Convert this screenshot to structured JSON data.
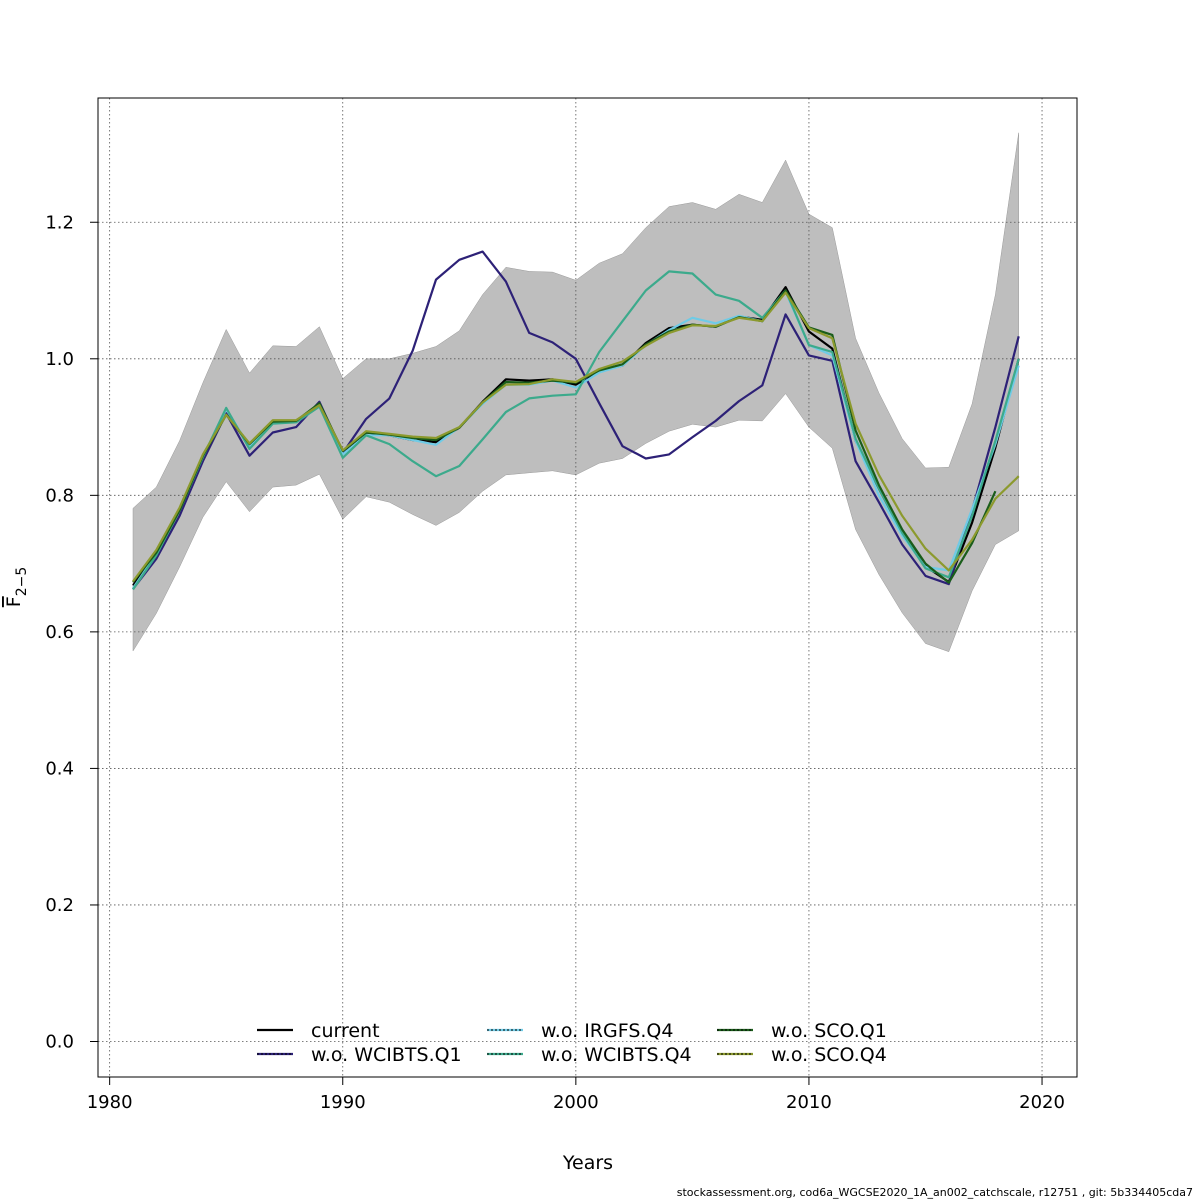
{
  "chart_data": {
    "type": "line",
    "xlabel": "Years",
    "ylabel": "F",
    "ylabel_sub": "2−5",
    "xlim": [
      1979.5,
      2021.5
    ],
    "ylim": [
      -0.052,
      1.382
    ],
    "x_ticks": [
      1980,
      1990,
      2000,
      2010,
      2020
    ],
    "y_ticks": [
      0.0,
      0.2,
      0.4,
      0.6,
      0.8,
      1.0,
      1.2
    ],
    "x_tick_labels": [
      "1980",
      "1990",
      "2000",
      "2010",
      "2020"
    ],
    "y_tick_labels": [
      "0.0",
      "0.2",
      "0.4",
      "0.6",
      "0.8",
      "1.0",
      "1.2"
    ],
    "grid": true,
    "legend_position": "bottom",
    "x": [
      1981,
      1982,
      1983,
      1984,
      1985,
      1986,
      1987,
      1988,
      1989,
      1990,
      1991,
      1992,
      1993,
      1994,
      1995,
      1996,
      1997,
      1998,
      1999,
      2000,
      2001,
      2002,
      2003,
      2004,
      2005,
      2006,
      2007,
      2008,
      2009,
      2010,
      2011,
      2012,
      2013,
      2014,
      2015,
      2016,
      2017,
      2018,
      2019
    ],
    "band": {
      "color": "#bebebe",
      "lower": [
        0.572,
        0.627,
        0.695,
        0.768,
        0.82,
        0.776,
        0.812,
        0.815,
        0.831,
        0.765,
        0.798,
        0.79,
        0.772,
        0.756,
        0.775,
        0.806,
        0.83,
        0.833,
        0.836,
        0.83,
        0.847,
        0.854,
        0.876,
        0.894,
        0.904,
        0.9,
        0.91,
        0.909,
        0.949,
        0.9,
        0.869,
        0.75,
        0.684,
        0.628,
        0.583,
        0.571,
        0.66,
        0.728,
        0.748
      ],
      "upper": [
        0.781,
        0.812,
        0.88,
        0.965,
        1.043,
        0.979,
        1.019,
        1.018,
        1.047,
        0.971,
        1.0,
        1.0,
        1.008,
        1.018,
        1.041,
        1.094,
        1.134,
        1.128,
        1.127,
        1.115,
        1.14,
        1.154,
        1.192,
        1.223,
        1.229,
        1.219,
        1.241,
        1.229,
        1.291,
        1.212,
        1.192,
        1.03,
        0.95,
        0.883,
        0.84,
        0.841,
        0.934,
        1.094,
        1.331
      ]
    },
    "series": [
      {
        "name": "current",
        "color": "#000000",
        "dash": "",
        "values": [
          0.668,
          0.714,
          0.778,
          0.857,
          0.92,
          0.873,
          0.906,
          0.908,
          0.933,
          0.864,
          0.892,
          0.888,
          0.881,
          0.878,
          0.899,
          0.937,
          0.97,
          0.968,
          0.97,
          0.962,
          0.982,
          0.99,
          1.023,
          1.045,
          1.05,
          1.047,
          1.062,
          1.057,
          1.105,
          1.04,
          1.015,
          0.88,
          0.81,
          0.745,
          0.696,
          0.673,
          0.76,
          0.87,
          1.0
        ]
      },
      {
        "name": "w.o. WCIBTS.Q1",
        "color": "#2d2177",
        "dash": "",
        "values": [
          0.663,
          0.707,
          0.77,
          0.85,
          0.92,
          0.858,
          0.892,
          0.9,
          0.937,
          0.862,
          0.912,
          0.942,
          1.012,
          1.116,
          1.145,
          1.157,
          1.113,
          1.038,
          1.024,
          1.0,
          0.935,
          0.872,
          0.854,
          0.86,
          0.885,
          0.909,
          0.938,
          0.961,
          1.065,
          1.005,
          0.997,
          0.85,
          0.79,
          0.728,
          0.682,
          0.67,
          0.778,
          0.9,
          1.033
        ]
      },
      {
        "name": "w.o. IRGFS.Q4",
        "color": "#6fcbe6",
        "dash": "",
        "values": [
          0.664,
          0.714,
          0.778,
          0.857,
          0.926,
          0.872,
          0.908,
          0.908,
          0.932,
          0.86,
          0.888,
          0.888,
          0.881,
          0.874,
          0.9,
          0.934,
          0.962,
          0.962,
          0.968,
          0.958,
          0.98,
          0.99,
          1.02,
          1.042,
          1.06,
          1.052,
          1.063,
          1.055,
          1.098,
          1.02,
          1.005,
          0.88,
          0.8,
          0.741,
          0.695,
          0.69,
          0.78,
          0.875,
          0.99
        ]
      },
      {
        "name": "w.o. WCIBTS.Q4",
        "color": "#3caa8c",
        "dash": "",
        "values": [
          0.662,
          0.712,
          0.778,
          0.856,
          0.928,
          0.868,
          0.905,
          0.907,
          0.93,
          0.855,
          0.888,
          0.875,
          0.85,
          0.828,
          0.843,
          0.882,
          0.922,
          0.942,
          0.946,
          0.948,
          1.01,
          1.055,
          1.1,
          1.128,
          1.125,
          1.094,
          1.085,
          1.06,
          1.1,
          1.02,
          1.01,
          0.883,
          0.81,
          0.745,
          0.693,
          0.68,
          0.77,
          0.88,
          1.0
        ]
      },
      {
        "name": "w.o. SCO.Q1",
        "color": "#1a5d1a",
        "dash": "",
        "values": [
          0.673,
          0.716,
          0.778,
          0.858,
          0.918,
          0.875,
          0.908,
          0.909,
          0.935,
          0.865,
          0.892,
          0.889,
          0.884,
          0.881,
          0.899,
          0.936,
          0.966,
          0.965,
          0.968,
          0.965,
          0.983,
          0.992,
          1.021,
          1.04,
          1.05,
          1.047,
          1.061,
          1.055,
          1.1,
          1.046,
          1.035,
          0.895,
          0.815,
          0.75,
          0.7,
          0.672,
          0.73,
          0.806,
          null
        ]
      },
      {
        "name": "w.o. SCO.Q4",
        "color": "#8c9a2e",
        "dash": "",
        "values": [
          0.674,
          0.72,
          0.782,
          0.86,
          0.918,
          0.876,
          0.91,
          0.91,
          0.932,
          0.866,
          0.894,
          0.89,
          0.886,
          0.884,
          0.9,
          0.936,
          0.962,
          0.963,
          0.97,
          0.966,
          0.985,
          0.996,
          1.019,
          1.038,
          1.049,
          1.048,
          1.06,
          1.055,
          1.097,
          1.045,
          1.03,
          0.905,
          0.83,
          0.77,
          0.722,
          0.69,
          0.735,
          0.795,
          0.828
        ]
      }
    ]
  },
  "footer_text": "stockassessment.org, cod6a_WGCSE2020_1A_an002_catchscale, r12751 , git: 5b334405cda7"
}
